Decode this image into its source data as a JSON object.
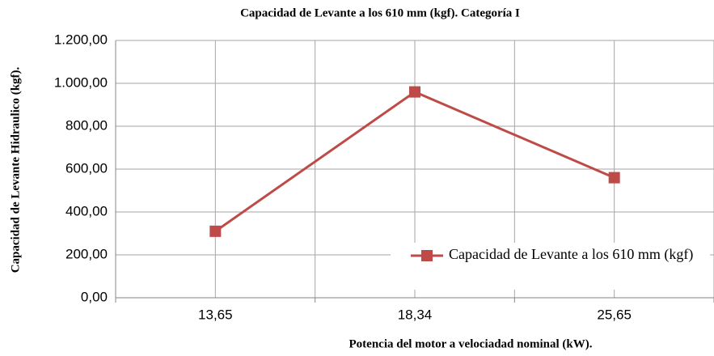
{
  "chart_data": {
    "type": "line",
    "title": "Capacidad  de Levante  a los 610 mm  (kgf). Categoría  I",
    "x_label": "Potencia  del motor  a veloc​iadad  nominal  (kW).",
    "y_label": "Capacidad  de Levante  Hidraulico  (kgf).",
    "categories": [
      "13,65",
      "18,34",
      "25,65"
    ],
    "series": [
      {
        "name": "Capacidad de Levante a los 610 mm (kgf)",
        "color": "#be4b48",
        "values": [
          310,
          960,
          560
        ]
      }
    ],
    "ylim": [
      0,
      1200
    ],
    "yticks": [
      {
        "value": 0,
        "label": "0,00"
      },
      {
        "value": 200,
        "label": "200,00"
      },
      {
        "value": 400,
        "label": "400,00"
      },
      {
        "value": 600,
        "label": "600,00"
      },
      {
        "value": 800,
        "label": "800,00"
      },
      {
        "value": 1000,
        "label": "1.000,00"
      },
      {
        "value": 1200,
        "label": "1.200,00"
      }
    ],
    "grid": true,
    "legend": "lower right"
  }
}
